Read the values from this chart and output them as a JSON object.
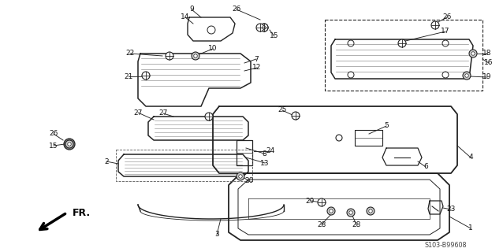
{
  "bg_color": "#ffffff",
  "line_color": "#222222",
  "text_color": "#111111",
  "diagram_code": "S103-B99608",
  "figsize": [
    6.38,
    3.2
  ],
  "dpi": 100
}
